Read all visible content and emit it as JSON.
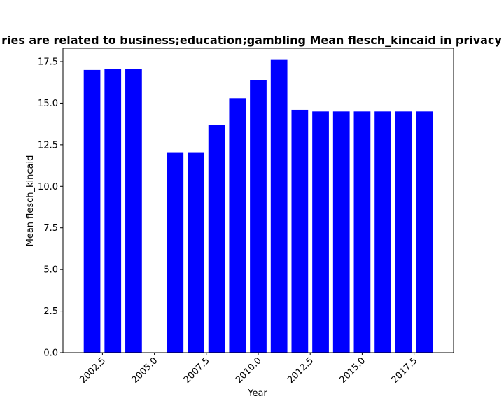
{
  "chart_data": {
    "type": "bar",
    "title": "ries are related to business;education;gambling Mean flesch_kincaid in privacy p",
    "xlabel": "Year",
    "ylabel": "Mean flesch_kincaid",
    "bar_color": "#0000ff",
    "x": [
      2002,
      2003,
      2004,
      2006,
      2007,
      2008,
      2009,
      2010,
      2011,
      2012,
      2013,
      2014,
      2015,
      2016,
      2017,
      2018
    ],
    "values": [
      17.0,
      17.05,
      17.05,
      12.05,
      12.05,
      13.7,
      15.3,
      16.4,
      17.6,
      14.6,
      14.5,
      14.5,
      14.5,
      14.5,
      14.5,
      14.5
    ],
    "xlim": [
      2000.6,
      2019.4
    ],
    "ylim": [
      0,
      18.3
    ],
    "xticks": [
      2002.5,
      2005.0,
      2007.5,
      2010.0,
      2012.5,
      2015.0,
      2017.5
    ],
    "xtick_labels": [
      "2002.5",
      "2005.0",
      "2007.5",
      "2010.0",
      "2012.5",
      "2015.0",
      "2017.5"
    ],
    "yticks": [
      0.0,
      2.5,
      5.0,
      7.5,
      10.0,
      12.5,
      15.0,
      17.5
    ],
    "ytick_labels": [
      "0.0",
      "2.5",
      "5.0",
      "7.5",
      "10.0",
      "12.5",
      "15.0",
      "17.5"
    ],
    "grid": false,
    "legend": "none"
  }
}
